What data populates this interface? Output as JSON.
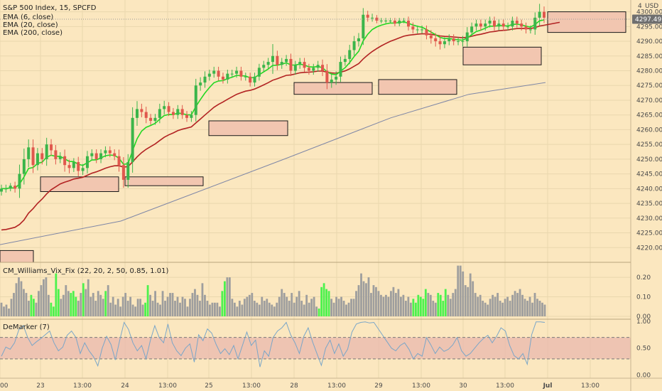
{
  "colors": {
    "background": "#fbe7bf",
    "grid": "#ead7ae",
    "axis_text": "#4a4a4a",
    "candle_up": "#3bb54a",
    "candle_down": "#e0584d",
    "ema6": "#22d822",
    "ema20": "#b22222",
    "ema200": "#7e86a6",
    "zone_fill": "#f2c6b0",
    "zone_border": "#1a1a1a",
    "vix_gray": "#9e9e9e",
    "vix_green": "#4df24d",
    "demarker_line": "#7aa6c8",
    "demarker_band": "#e9b8ad",
    "price_tag_bg": "#6f6f6f"
  },
  "chart_data": [
    {
      "type": "candlestick",
      "title": "S&P 500 Index, 15, SPCFD",
      "currency": "USD",
      "legend": [
        "EMA (6, close)",
        "EMA (20, close)",
        "EMA (200, close)"
      ],
      "last_price_label": "4297.49",
      "last_price": 4297.49,
      "ylim": [
        4215,
        4304
      ],
      "yticks": [
        4220,
        4225,
        4230,
        4235,
        4240,
        4245,
        4250,
        4255,
        4260,
        4265,
        4270,
        4275,
        4280,
        4285,
        4290,
        4295,
        4300
      ],
      "ytick_labels": [
        "4220.00",
        "4225.00",
        "4230.00",
        "4235.00",
        "4240.00",
        "4245.00",
        "4250.00",
        "4255.00",
        "4260.00",
        "4265.00",
        "4270.00",
        "4275.00",
        "4280.00",
        "4285.00",
        "4290.00",
        "4295.00",
        "4300.00"
      ],
      "top_tick_label": "4",
      "closes": [
        4240,
        4240,
        4241,
        4240,
        4245,
        4250,
        4254,
        4248,
        4252,
        4250,
        4255,
        4253,
        4250,
        4251,
        4248,
        4247,
        4249,
        4246,
        4247,
        4251,
        4252,
        4250,
        4252,
        4253,
        4252,
        4251,
        4248,
        4243,
        4249,
        4264,
        4267,
        4266,
        4264,
        4263,
        4264,
        4267,
        4268,
        4266,
        4265,
        4267,
        4265,
        4264,
        4265,
        4275,
        4276,
        4278,
        4279,
        4280,
        4278,
        4277,
        4279,
        4279,
        4280,
        4278,
        4278,
        4276,
        4278,
        4281,
        4282,
        4283,
        4285,
        4282,
        4283,
        4284,
        4280,
        4282,
        4283,
        4281,
        4280,
        4281,
        4282,
        4280,
        4276,
        4277,
        4278,
        4283,
        4284,
        4287,
        4290,
        4291,
        4299,
        4298,
        4298,
        4297,
        4297,
        4297,
        4297,
        4296,
        4297,
        4297,
        4295,
        4294,
        4294,
        4294,
        4292,
        4291,
        4290,
        4289,
        4290,
        4291,
        4290,
        4290,
        4290,
        4293,
        4295,
        4296,
        4295,
        4296,
        4297,
        4295,
        4296,
        4295,
        4295,
        4297,
        4296,
        4295,
        4294,
        4294,
        4298,
        4300,
        4298
      ],
      "wick_ranges": [
        3,
        3,
        2,
        3,
        7,
        8,
        6,
        6,
        4,
        4,
        5,
        4,
        4,
        3,
        5,
        4,
        3,
        4,
        3,
        4,
        3,
        3,
        3,
        3,
        3,
        3,
        5,
        6,
        6,
        8,
        6,
        4,
        4,
        3,
        3,
        4,
        4,
        3,
        3,
        3,
        3,
        3,
        3,
        5,
        4,
        4,
        3,
        3,
        3,
        3,
        3,
        3,
        3,
        3,
        3,
        3,
        3,
        3,
        3,
        3,
        9,
        4,
        3,
        3,
        4,
        3,
        3,
        3,
        3,
        3,
        3,
        4,
        5,
        4,
        4,
        4,
        3,
        4,
        4,
        4,
        5,
        3,
        3,
        2,
        2,
        2,
        2,
        2,
        2,
        2,
        3,
        3,
        3,
        3,
        3,
        4,
        4,
        4,
        3,
        3,
        3,
        3,
        4,
        4,
        3,
        3,
        3,
        3,
        3,
        3,
        3,
        3,
        3,
        3,
        3,
        3,
        3,
        3,
        4,
        6,
        4
      ],
      "ema_200": [
        [
          0,
          4221
        ],
        [
          170,
          4229
        ],
        [
          400,
          4250
        ],
        [
          550,
          4264
        ],
        [
          660,
          4272
        ],
        [
          768,
          4276
        ]
      ],
      "zones": [
        {
          "x0": 0,
          "x1": 47,
          "y0": 4219,
          "y1": 4215
        },
        {
          "x0": 57,
          "x1": 167,
          "y0": 4244,
          "y1": 4239
        },
        {
          "x0": 176,
          "x1": 286,
          "y0": 4244,
          "y1": 4241
        },
        {
          "x0": 294,
          "x1": 405,
          "y0": 4263,
          "y1": 4258
        },
        {
          "x0": 414,
          "x1": 524,
          "y0": 4276,
          "y1": 4272
        },
        {
          "x0": 533,
          "x1": 643,
          "y0": 4277,
          "y1": 4272
        },
        {
          "x0": 652,
          "x1": 762,
          "y0": 4288,
          "y1": 4282
        },
        {
          "x0": 771,
          "x1": 881,
          "y0": 4300,
          "y1": 4293
        }
      ]
    },
    {
      "type": "bar",
      "title": "CM_Williams_Vix_Fix (22, 20, 2, 50, 0.85, 1.01)",
      "ylim": [
        0,
        0.255
      ],
      "yticks": [
        0,
        0.1,
        0.2
      ],
      "ytick_labels": [
        "0.00",
        "0.10",
        "0.20"
      ],
      "values": [
        0.07,
        0.05,
        0.06,
        0.04,
        0.09,
        0.12,
        0.17,
        0.2,
        0.18,
        0.14,
        0.12,
        0.08,
        0.11,
        0.09,
        0.07,
        0.13,
        0.16,
        0.19,
        0.2,
        0.11,
        0.07,
        0.05,
        0.22,
        0.14,
        0.09,
        0.11,
        0.16,
        0.13,
        0.12,
        0.13,
        0.1,
        0.08,
        0.12,
        0.17,
        0.14,
        0.19,
        0.1,
        0.12,
        0.08,
        0.13,
        0.11,
        0.09,
        0.13,
        0.16,
        0.07,
        0.1,
        0.06,
        0.09,
        0.05,
        0.1,
        0.12,
        0.08,
        0.1,
        0.06,
        0.05,
        0.09,
        0.09,
        0.06,
        0.07,
        0.16,
        0.11,
        0.08,
        0.13,
        0.07,
        0.06,
        0.13,
        0.08,
        0.1,
        0.12,
        0.12,
        0.08,
        0.1,
        0.07,
        0.1,
        0.09,
        0.05,
        0.09,
        0.12,
        0.14,
        0.11,
        0.08,
        0.17,
        0.11,
        0.08,
        0.06,
        0.07,
        0.07,
        0.07,
        0.05,
        0.13,
        0.18,
        0.2,
        0.2,
        0.09,
        0.07,
        0.05,
        0.08,
        0.06,
        0.09,
        0.1,
        0.11,
        0.12,
        0.08,
        0.07,
        0.06,
        0.1,
        0.08,
        0.09,
        0.07,
        0.06,
        0.05,
        0.07,
        0.1,
        0.14,
        0.12,
        0.1,
        0.08,
        0.12,
        0.07,
        0.1,
        0.13,
        0.08,
        0.06,
        0.11,
        0.07,
        0.09,
        0.1,
        0.05,
        0.04,
        0.15,
        0.17,
        0.14,
        0.13,
        0.09,
        0.07,
        0.1,
        0.09,
        0.1,
        0.08,
        0.06,
        0.07,
        0.09,
        0.09,
        0.13,
        0.16,
        0.22,
        0.18,
        0.17,
        0.2,
        0.12,
        0.16,
        0.15,
        0.13,
        0.11,
        0.1,
        0.11,
        0.1,
        0.13,
        0.15,
        0.12,
        0.14,
        0.1,
        0.11,
        0.08,
        0.1,
        0.07,
        0.09,
        0.07,
        0.11,
        0.1,
        0.09,
        0.14,
        0.12,
        0.11,
        0.08,
        0.07,
        0.12,
        0.11,
        0.08,
        0.14,
        0.11,
        0.09,
        0.12,
        0.14,
        0.26,
        0.26,
        0.23,
        0.16,
        0.15,
        0.22,
        0.18,
        0.12,
        0.1,
        0.11,
        0.08,
        0.07,
        0.06,
        0.09,
        0.11,
        0.1,
        0.12,
        0.08,
        0.07,
        0.09,
        0.1,
        0.08,
        0.11,
        0.13,
        0.12,
        0.14,
        0.11,
        0.09,
        0.08,
        0.1,
        0.07,
        0.12,
        0.09,
        0.08,
        0.07,
        0.06
      ],
      "green_indices": [
        12,
        13,
        20,
        21,
        22,
        23,
        28,
        29,
        30,
        33,
        42,
        58,
        59,
        89,
        90,
        128,
        129,
        130,
        131,
        132,
        166,
        167,
        168,
        169,
        170,
        171,
        176,
        177,
        178,
        179
      ]
    },
    {
      "type": "line",
      "title": "DeMarker (7)",
      "ylim": [
        -0.06,
        1.04
      ],
      "yticks": [
        0,
        0.5,
        1.0
      ],
      "ytick_labels": [
        "0.00",
        "0.50",
        "1.00"
      ],
      "band": [
        0.3,
        0.7
      ],
      "values": [
        0.35,
        0.52,
        0.48,
        0.6,
        0.85,
        0.92,
        0.7,
        0.55,
        0.62,
        0.68,
        0.75,
        0.82,
        0.6,
        0.45,
        0.52,
        0.74,
        0.82,
        0.7,
        0.4,
        0.6,
        0.45,
        0.34,
        0.17,
        0.5,
        0.72,
        0.57,
        0.28,
        0.65,
        0.98,
        0.85,
        0.6,
        0.45,
        0.55,
        0.3,
        0.65,
        0.92,
        0.7,
        0.6,
        0.95,
        0.6,
        0.45,
        0.36,
        0.5,
        0.58,
        0.24,
        0.75,
        0.64,
        0.86,
        0.78,
        0.57,
        0.4,
        0.49,
        0.38,
        0.55,
        0.3,
        0.55,
        0.8,
        0.55,
        0.65,
        0.15,
        0.45,
        0.35,
        0.7,
        0.82,
        0.88,
        0.98,
        0.75,
        0.6,
        0.4,
        0.72,
        0.88,
        0.62,
        0.4,
        0.18,
        0.5,
        0.65,
        0.4,
        0.58,
        0.35,
        0.48,
        0.8,
        0.95,
        0.98,
        0.99,
        0.97,
        0.98,
        0.86,
        0.74,
        0.62,
        0.5,
        0.45,
        0.55,
        0.6,
        0.48,
        0.3,
        0.4,
        0.35,
        0.7,
        0.56,
        0.4,
        0.52,
        0.44,
        0.48,
        0.56,
        0.7,
        0.45,
        0.35,
        0.4,
        0.5,
        0.6,
        0.68,
        0.74,
        0.6,
        0.72,
        0.88,
        0.82,
        0.55,
        0.36,
        0.3,
        0.4,
        0.2,
        0.75,
        0.99,
        0.99,
        0.98
      ]
    }
  ],
  "x_axis": {
    "labels": [
      "00",
      "23",
      "13:00",
      "24",
      "13:00",
      "25",
      "13:00",
      "28",
      "13:00",
      "29",
      "13:00",
      "30",
      "13:00",
      "Jul",
      "13:00"
    ],
    "bold": [
      false,
      false,
      false,
      false,
      false,
      false,
      false,
      false,
      false,
      false,
      false,
      false,
      false,
      true,
      false
    ]
  }
}
